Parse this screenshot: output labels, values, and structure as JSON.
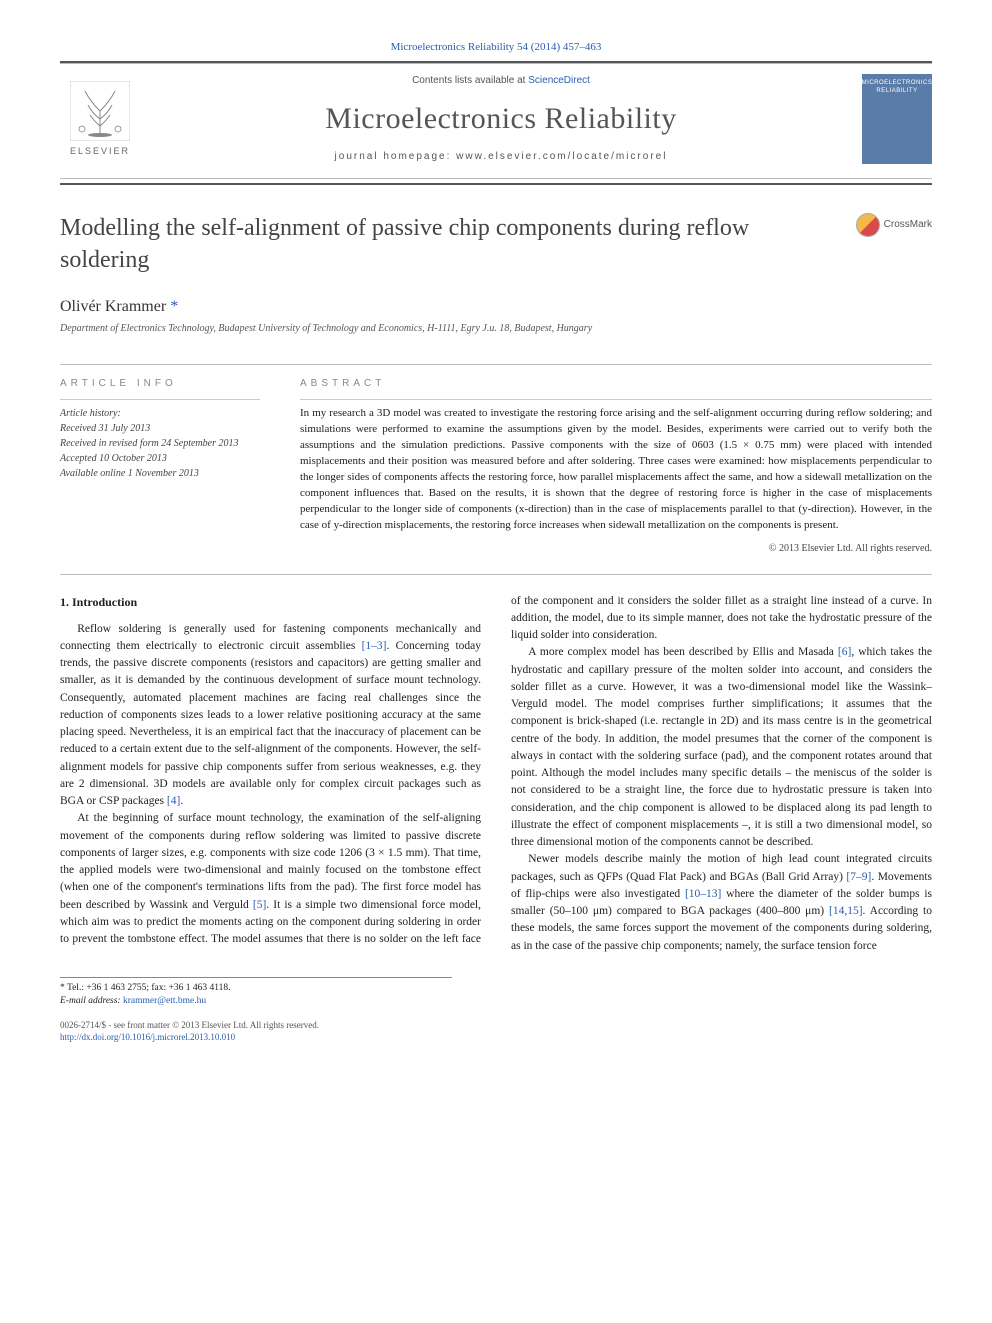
{
  "citation": "Microelectronics Reliability 54 (2014) 457–463",
  "header": {
    "contents_prefix": "Contents lists available at ",
    "contents_link": "ScienceDirect",
    "journal": "Microelectronics Reliability",
    "homepage_prefix": "journal homepage: ",
    "homepage": "www.elsevier.com/locate/microrel",
    "publisher": "ELSEVIER",
    "cover_text": "MICROELECTRONICS RELIABILITY"
  },
  "crossmark": "CrossMark",
  "title": "Modelling the self-alignment of passive chip components during reflow soldering",
  "author": {
    "name": "Olivér Krammer",
    "marker": "*"
  },
  "affiliation": "Department of Electronics Technology, Budapest University of Technology and Economics, H-1111, Egry J.u. 18, Budapest, Hungary",
  "info": {
    "label": "ARTICLE INFO",
    "history_head": "Article history:",
    "h1": "Received 31 July 2013",
    "h2": "Received in revised form 24 September 2013",
    "h3": "Accepted 10 October 2013",
    "h4": "Available online 1 November 2013"
  },
  "abstract": {
    "label": "ABSTRACT",
    "text": "In my research a 3D model was created to investigate the restoring force arising and the self-alignment occurring during reflow soldering; and simulations were performed to examine the assumptions given by the model. Besides, experiments were carried out to verify both the assumptions and the simulation predictions. Passive components with the size of 0603 (1.5 × 0.75 mm) were placed with intended misplacements and their position was measured before and after soldering. Three cases were examined: how misplacements perpendicular to the longer sides of components affects the restoring force, how parallel misplacements affect the same, and how a sidewall metallization on the component influences that. Based on the results, it is shown that the degree of restoring force is higher in the case of misplacements perpendicular to the longer side of components (x-direction) than in the case of misplacements parallel to that (y-direction). However, in the case of y-direction misplacements, the restoring force increases when sidewall metallization on the components is present.",
    "copyright": "© 2013 Elsevier Ltd. All rights reserved."
  },
  "section1": {
    "heading": "1. Introduction",
    "p1": "Reflow soldering is generally used for fastening components mechanically and connecting them electrically to electronic circuit assemblies [1–3]. Concerning today trends, the passive discrete components (resistors and capacitors) are getting smaller and smaller, as it is demanded by the continuous development of surface mount technology. Consequently, automated placement machines are facing real challenges since the reduction of components sizes leads to a lower relative positioning accuracy at the same placing speed. Nevertheless, it is an empirical fact that the inaccuracy of placement can be reduced to a certain extent due to the self-alignment of the components. However, the self-alignment models for passive chip components suffer from serious weaknesses, e.g. they are 2 dimensional. 3D models are available only for complex circuit packages such as BGA or CSP packages [4].",
    "p2": "At the beginning of surface mount technology, the examination of the self-aligning movement of the components during reflow soldering was limited to passive discrete components of larger sizes, e.g. components with size code 1206 (3 × 1.5 mm). That time, the applied models were two-dimensional and mainly focused on the tombstone effect (when one of the component's terminations lifts from the pad). The first force model has been described by Wassink and Verguld [5]. It is a simple two dimensional force model, which aim was to predict the moments acting on the component during soldering in order to prevent the tombstone effect. The model assumes that there is no solder on the left face of the component and it considers the solder fillet as a straight line instead of a curve. In addition, the model, due to its simple manner, does not take the hydrostatic pressure of the liquid solder into consideration.",
    "p3": "A more complex model has been described by Ellis and Masada [6], which takes the hydrostatic and capillary pressure of the molten solder into account, and considers the solder fillet as a curve. However, it was a two-dimensional model like the Wassink–Verguld model. The model comprises further simplifications; it assumes that the component is brick-shaped (i.e. rectangle in 2D) and its mass centre is in the geometrical centre of the body. In addition, the model presumes that the corner of the component is always in contact with the soldering surface (pad), and the component rotates around that point. Although the model includes many specific details – the meniscus of the solder is not considered to be a straight line, the force due to hydrostatic pressure is taken into consideration, and the chip component is allowed to be displaced along its pad length to illustrate the effect of component misplacements –, it is still a two dimensional model, so three dimensional motion of the components cannot be described.",
    "p4": "Newer models describe mainly the motion of high lead count integrated circuits packages, such as QFPs (Quad Flat Pack) and BGAs (Ball Grid Array) [7–9]. Movements of flip-chips were also investigated [10–13] where the diameter of the solder bumps is smaller (50–100 μm) compared to BGA packages (400–800 μm) [14,15]. According to these models, the same forces support the movement of the components during soldering, as in the case of the passive chip components; namely, the surface tension force"
  },
  "footnote": {
    "tel": "* Tel.: +36 1 463 2755; fax: +36 1 463 4118.",
    "email_label": "E-mail address:",
    "email": "krammer@ett.bme.hu"
  },
  "footer": {
    "line1": "0026-2714/$ - see front matter © 2013 Elsevier Ltd. All rights reserved.",
    "doi": "http://dx.doi.org/10.1016/j.microrel.2013.10.010"
  },
  "colors": {
    "link": "#2a5db0",
    "rule": "#555555",
    "text": "#222222",
    "muted": "#888888",
    "cover_bg": "#5a7ca8"
  }
}
